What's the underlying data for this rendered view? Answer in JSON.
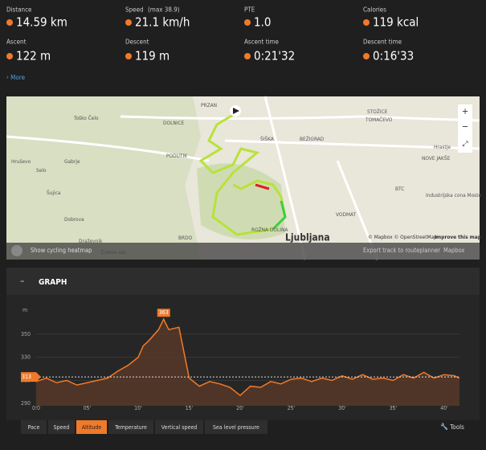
{
  "stats": [
    {
      "label": "Distance",
      "value": "14.59 km"
    },
    {
      "label": "Speed",
      "note": "(max  38.9)",
      "value": "21.1 km/h"
    },
    {
      "label": "PTE",
      "value": "1.0"
    },
    {
      "label": "Calories",
      "value": "119 kcal"
    },
    {
      "label": "Ascent",
      "value": "122 m"
    },
    {
      "label": "Descent",
      "value": "119 m"
    },
    {
      "label": "Ascent time",
      "value": "0:21'32"
    },
    {
      "label": "Descent time",
      "value": "0:16'33"
    }
  ],
  "more": "More",
  "map": {
    "labels": [
      "PRZAN",
      "DOLNICE",
      "ŠIŠKA",
      "BEŽIGRAD",
      "STOŽICE",
      "TOMAČEVO",
      "Hrastje",
      "NOVE JAKŠE",
      "BTC",
      "Industrijska cona Moste",
      "VODMAT",
      "ROŽNA DOLINA",
      "Toško Čelo",
      "Hruševo",
      "Selo",
      "Gabrje",
      "Šujica",
      "Dobrova",
      "PODUTIK",
      "BRDO",
      "Draževnik",
      "Žuleva vas"
    ],
    "city": "Ljubljana",
    "attribution": "© Mapbox © OpenStreetMap",
    "improve": "Improve this map",
    "heatmap": "Show cycling heatmap",
    "export": "Export track to routeplanner",
    "style": "Mapbox"
  },
  "graph": {
    "title": "GRAPH",
    "chart": {
      "type": "area",
      "y_unit": "m",
      "x": [
        0,
        1,
        2,
        3,
        4,
        5,
        6,
        7,
        8,
        9,
        10,
        10.5,
        11,
        12,
        12.5,
        13,
        14,
        15,
        16,
        17,
        18,
        19,
        20,
        21,
        22,
        23,
        24,
        25,
        26,
        27,
        28,
        29,
        30,
        31,
        32,
        33,
        34,
        35,
        36,
        37,
        38,
        39,
        40,
        41,
        41.5
      ],
      "values": [
        309,
        312,
        308,
        310,
        306,
        308,
        310,
        312,
        318,
        323,
        330,
        340,
        344,
        354,
        363,
        354,
        356,
        312,
        305,
        309,
        307,
        304,
        297,
        305,
        304,
        309,
        307,
        311,
        312,
        309,
        312,
        310,
        314,
        311,
        315,
        311,
        312,
        310,
        315,
        312,
        317,
        312,
        315,
        314,
        312
      ],
      "xlim": [
        0,
        41.5
      ],
      "ylim": [
        288,
        375
      ],
      "yticks": [
        290,
        310,
        330,
        350
      ],
      "xticks": [
        {
          "value": 0,
          "label": "0.0"
        },
        {
          "value": 5,
          "label": "05'"
        },
        {
          "value": 10,
          "label": "10'"
        },
        {
          "value": 15,
          "label": "15'"
        },
        {
          "value": 20,
          "label": "20'"
        },
        {
          "value": 25,
          "label": "25'"
        },
        {
          "value": 30,
          "label": "30'"
        },
        {
          "value": 35,
          "label": "35'"
        },
        {
          "value": 40,
          "label": "40'"
        }
      ],
      "max_label": 363,
      "reference": 313,
      "color": "#f07a2a"
    },
    "tabs": [
      "Pace",
      "Speed",
      "Altitude",
      "Temperature",
      "Vertical speed",
      "Sea level pressure"
    ],
    "active_tab": 2,
    "tools": "Tools"
  }
}
